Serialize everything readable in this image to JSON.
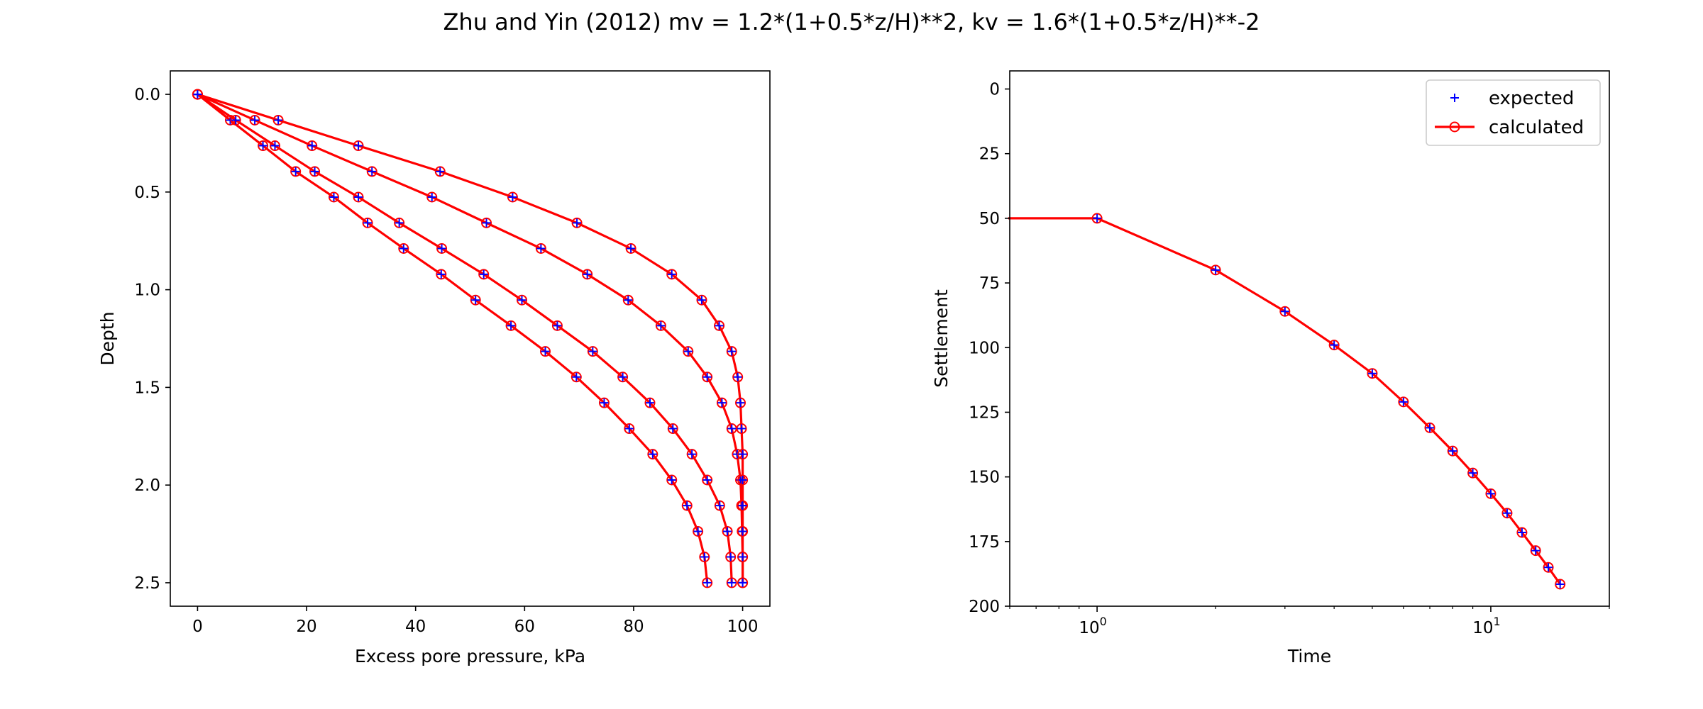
{
  "figure": {
    "title": "Zhu and Yin (2012) mv = 1.2*(1+0.5*z/H)**2, kv = 1.6*(1+0.5*z/H)**-2"
  },
  "colors": {
    "line": "#ff0000",
    "expected_marker": "#0000ff",
    "background": "#ffffff",
    "axes": "#000000"
  },
  "chart_data": [
    {
      "type": "line",
      "xlabel": "Excess pore pressure, kPa",
      "ylabel": "Depth",
      "xlim": [
        -5,
        105
      ],
      "ylim": [
        2.62,
        -0.12
      ],
      "y_inverted": true,
      "x_ticks": [
        0,
        20,
        40,
        60,
        80,
        100
      ],
      "x_tick_labels": [
        "0",
        "20",
        "40",
        "60",
        "80",
        "100"
      ],
      "y_ticks": [
        0,
        0.5,
        1.0,
        1.5,
        2.0,
        2.5
      ],
      "y_tick_labels": [
        "0.0",
        "0.5",
        "1.0",
        "1.5",
        "2.0",
        "2.5"
      ],
      "legend": false,
      "grid": false,
      "depth": [
        0,
        0.132,
        0.263,
        0.395,
        0.526,
        0.658,
        0.789,
        0.921,
        1.053,
        1.184,
        1.316,
        1.447,
        1.579,
        1.711,
        1.842,
        1.974,
        2.105,
        2.237,
        2.368,
        2.5
      ],
      "series": [
        {
          "values": [
            0,
            6,
            12,
            18,
            25,
            31.2,
            37.8,
            44.7,
            51,
            57.5,
            63.8,
            69.5,
            74.6,
            79.2,
            83.5,
            87,
            89.8,
            91.8,
            93,
            93.5
          ]
        },
        {
          "values": [
            0,
            7,
            14.2,
            21.5,
            29.5,
            37,
            44.8,
            52.5,
            59.5,
            66,
            72.5,
            78,
            83,
            87.2,
            90.7,
            93.5,
            95.8,
            97.2,
            97.8,
            98
          ]
        },
        {
          "values": [
            0,
            10.5,
            21,
            32,
            43,
            53,
            63,
            71.5,
            79,
            85,
            90,
            93.5,
            96.2,
            98,
            99,
            99.6,
            99.8,
            99.9,
            100,
            100
          ]
        },
        {
          "values": [
            0,
            14.8,
            29.5,
            44.5,
            57.8,
            69.6,
            79.5,
            87,
            92.5,
            95.7,
            98,
            99.1,
            99.6,
            99.8,
            100,
            100,
            100,
            100,
            100,
            100
          ]
        }
      ]
    },
    {
      "type": "line",
      "xlabel": "Time",
      "ylabel": "Settlement",
      "x_scale": "log",
      "xlim": [
        0.6,
        20
      ],
      "ylim": [
        200,
        -7
      ],
      "y_inverted": true,
      "x_major_ticks": [
        1,
        10
      ],
      "x_tick_labels": [
        {
          "base": "10",
          "exp": "0"
        },
        {
          "base": "10",
          "exp": "1"
        }
      ],
      "y_ticks": [
        0,
        25,
        50,
        75,
        100,
        125,
        150,
        175,
        200
      ],
      "y_tick_labels": [
        "0",
        "25",
        "50",
        "75",
        "100",
        "125",
        "150",
        "175",
        "200"
      ],
      "legend_position": "top-right",
      "grid": false,
      "legend": [
        {
          "label": "expected",
          "marker": "+",
          "color": "#0000ff"
        },
        {
          "label": "calculated",
          "marker": "o",
          "line": true,
          "color": "#ff0000"
        }
      ],
      "x": [
        0,
        1,
        2,
        3,
        4,
        5,
        6,
        7,
        8,
        9,
        10,
        11,
        12,
        13,
        14,
        15
      ],
      "series": [
        {
          "name": "expected",
          "values": [
            50,
            50,
            70,
            86,
            99,
            110,
            121,
            131,
            140,
            148.5,
            156.5,
            164,
            171.5,
            178.5,
            185,
            191.5
          ]
        },
        {
          "name": "calculated",
          "values": [
            50,
            50,
            70,
            86,
            99,
            110,
            121,
            131,
            140,
            148.5,
            156.5,
            164,
            171.5,
            178.5,
            185,
            191.5
          ]
        }
      ]
    }
  ]
}
